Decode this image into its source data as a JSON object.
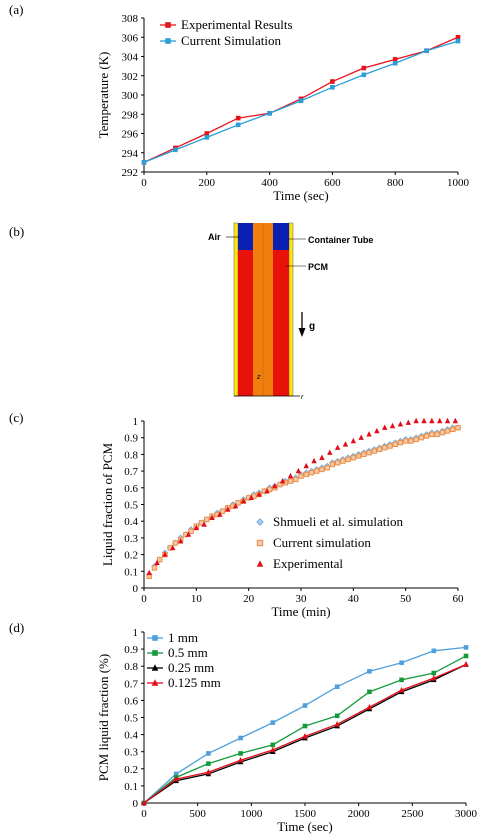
{
  "panel_labels": [
    "(a)",
    "(b)",
    "(c)",
    "(d)"
  ],
  "diagram": {
    "air_label": "Air",
    "container_label": "Container Tube",
    "pcm_label": "PCM",
    "gravity_label": "g",
    "z_label": "z",
    "r_label": "r",
    "colors": {
      "air": "#0a1fb3",
      "pcm": "#e8120b",
      "tube": "#f07f10",
      "wall": "#ffe600"
    }
  },
  "chart_data": [
    {
      "id": "a",
      "type": "line",
      "xlabel": "Time (sec)",
      "ylabel": "Temperature (K)",
      "xlim": [
        0,
        1000
      ],
      "ylim": [
        292,
        308
      ],
      "xticks": [
        0,
        200,
        400,
        600,
        800,
        1000
      ],
      "yticks": [
        292,
        294,
        296,
        298,
        300,
        302,
        304,
        306,
        308
      ],
      "legend": "top-left",
      "series": [
        {
          "name": "Experimental Results",
          "color": "#e8121b",
          "marker": "square",
          "x": [
            0,
            100,
            200,
            300,
            400,
            500,
            600,
            700,
            800,
            900,
            1000
          ],
          "y": [
            293.0,
            294.5,
            296.0,
            297.6,
            298.1,
            299.6,
            301.4,
            302.8,
            303.7,
            304.6,
            306.0
          ]
        },
        {
          "name": "Current Simulation",
          "color": "#2a9fd8",
          "marker": "square",
          "x": [
            0,
            100,
            200,
            300,
            400,
            500,
            600,
            700,
            800,
            900,
            1000
          ],
          "y": [
            293.0,
            294.3,
            295.6,
            296.9,
            298.1,
            299.4,
            300.8,
            302.1,
            303.3,
            304.6,
            305.6
          ]
        }
      ]
    },
    {
      "id": "c",
      "type": "scatter",
      "xlabel": "Time (min)",
      "ylabel": "Liquid fraction of PCM",
      "xlim": [
        0,
        60
      ],
      "ylim": [
        0,
        1
      ],
      "xticks": [
        0,
        10,
        20,
        30,
        40,
        50,
        60
      ],
      "yticks": [
        0,
        0.1,
        0.2,
        0.3,
        0.4,
        0.5,
        0.6,
        0.7,
        0.8,
        0.9,
        1
      ],
      "legend": "bottom-right",
      "series": [
        {
          "name": "Shmueli et al. simulation",
          "color": "#6aa5d8",
          "marker": "diamond",
          "x": [
            1,
            2,
            3,
            4,
            5,
            6,
            7,
            8,
            9,
            10,
            11,
            12,
            13,
            14,
            15,
            16,
            17,
            18,
            19,
            20,
            21,
            22,
            23,
            24,
            25,
            26,
            27,
            28,
            29,
            30,
            31,
            32,
            33,
            34,
            35,
            36,
            37,
            38,
            39,
            40,
            41,
            42,
            43,
            44,
            45,
            46,
            47,
            48,
            49,
            50,
            51,
            52,
            53,
            54,
            55,
            56,
            57,
            58,
            59,
            60
          ],
          "y": [
            0.08,
            0.13,
            0.17,
            0.21,
            0.24,
            0.27,
            0.3,
            0.32,
            0.35,
            0.37,
            0.39,
            0.41,
            0.43,
            0.45,
            0.46,
            0.48,
            0.5,
            0.51,
            0.53,
            0.54,
            0.56,
            0.57,
            0.58,
            0.6,
            0.61,
            0.62,
            0.64,
            0.65,
            0.66,
            0.68,
            0.69,
            0.7,
            0.71,
            0.72,
            0.73,
            0.75,
            0.76,
            0.77,
            0.78,
            0.79,
            0.8,
            0.81,
            0.82,
            0.83,
            0.84,
            0.85,
            0.86,
            0.87,
            0.88,
            0.89,
            0.89,
            0.9,
            0.91,
            0.92,
            0.93,
            0.93,
            0.94,
            0.95,
            0.96,
            0.96
          ]
        },
        {
          "name": "Current simulation",
          "color": "#e8904a",
          "marker": "square-open",
          "x": [
            1,
            2,
            3,
            4,
            5,
            6,
            7,
            8,
            9,
            10,
            11,
            12,
            13,
            14,
            15,
            16,
            17,
            18,
            19,
            20,
            21,
            22,
            23,
            24,
            25,
            26,
            27,
            28,
            29,
            30,
            31,
            32,
            33,
            34,
            35,
            36,
            37,
            38,
            39,
            40,
            41,
            42,
            43,
            44,
            45,
            46,
            47,
            48,
            49,
            50,
            51,
            52,
            53,
            54,
            55,
            56,
            57,
            58,
            59,
            60
          ],
          "y": [
            0.07,
            0.12,
            0.17,
            0.2,
            0.24,
            0.27,
            0.29,
            0.32,
            0.34,
            0.37,
            0.39,
            0.41,
            0.43,
            0.44,
            0.46,
            0.48,
            0.49,
            0.51,
            0.52,
            0.54,
            0.55,
            0.56,
            0.58,
            0.59,
            0.6,
            0.62,
            0.63,
            0.64,
            0.65,
            0.67,
            0.68,
            0.69,
            0.7,
            0.71,
            0.72,
            0.74,
            0.75,
            0.76,
            0.77,
            0.78,
            0.79,
            0.8,
            0.81,
            0.82,
            0.83,
            0.84,
            0.85,
            0.86,
            0.87,
            0.88,
            0.88,
            0.89,
            0.9,
            0.91,
            0.92,
            0.92,
            0.93,
            0.94,
            0.95,
            0.96
          ]
        },
        {
          "name": "Experimental",
          "color": "#e30d1a",
          "marker": "triangle",
          "x": [
            1,
            2.5,
            4,
            5.5,
            7,
            8.5,
            10,
            11.5,
            13,
            14.5,
            16,
            17.5,
            19,
            20.5,
            22,
            23.5,
            25,
            26.5,
            28,
            29.5,
            31,
            32.5,
            34,
            35.5,
            37,
            38.5,
            40,
            41.5,
            43,
            44.5,
            46,
            47.5,
            49,
            50.5,
            52,
            53.5,
            55,
            56.5,
            58,
            59.5
          ],
          "y": [
            0.09,
            0.15,
            0.2,
            0.24,
            0.28,
            0.32,
            0.36,
            0.38,
            0.42,
            0.44,
            0.47,
            0.49,
            0.52,
            0.54,
            0.56,
            0.58,
            0.61,
            0.64,
            0.67,
            0.7,
            0.73,
            0.76,
            0.78,
            0.81,
            0.84,
            0.86,
            0.88,
            0.9,
            0.92,
            0.94,
            0.96,
            0.97,
            0.98,
            0.99,
            1,
            1,
            1,
            1,
            1,
            1
          ]
        }
      ]
    },
    {
      "id": "d",
      "type": "line",
      "xlabel": "Time (sec)",
      "ylabel": "PCM liquid fraction (%)",
      "xlim": [
        0,
        3000
      ],
      "ylim": [
        0,
        1
      ],
      "xticks": [
        0,
        500,
        1000,
        1500,
        2000,
        2500,
        3000
      ],
      "yticks": [
        0,
        0.1,
        0.2,
        0.3,
        0.4,
        0.5,
        0.6,
        0.7,
        0.8,
        0.9,
        1
      ],
      "legend": "top-left",
      "series": [
        {
          "name": "1 mm",
          "color": "#4f9fdc",
          "marker": "square",
          "x": [
            0,
            300,
            600,
            900,
            1200,
            1500,
            1800,
            2100,
            2400,
            2700,
            3000
          ],
          "y": [
            0,
            0.17,
            0.29,
            0.38,
            0.47,
            0.57,
            0.68,
            0.77,
            0.82,
            0.89,
            0.91
          ]
        },
        {
          "name": "0.5 mm",
          "color": "#149a3c",
          "marker": "square",
          "x": [
            0,
            300,
            600,
            900,
            1200,
            1500,
            1800,
            2100,
            2400,
            2700,
            3000
          ],
          "y": [
            0,
            0.15,
            0.23,
            0.29,
            0.34,
            0.45,
            0.51,
            0.65,
            0.72,
            0.76,
            0.86
          ]
        },
        {
          "name": "0.25 mm",
          "color": "#000000",
          "marker": "triangle",
          "x": [
            0,
            300,
            600,
            900,
            1200,
            1500,
            1800,
            2100,
            2400,
            2700,
            3000
          ],
          "y": [
            0,
            0.13,
            0.17,
            0.24,
            0.3,
            0.38,
            0.45,
            0.55,
            0.65,
            0.72,
            0.81
          ]
        },
        {
          "name": "0.125 mm",
          "color": "#e30d1a",
          "marker": "triangle",
          "x": [
            0,
            300,
            600,
            900,
            1200,
            1500,
            1800,
            2100,
            2400,
            2700,
            3000
          ],
          "y": [
            0,
            0.14,
            0.18,
            0.25,
            0.31,
            0.39,
            0.46,
            0.56,
            0.66,
            0.73,
            0.81
          ]
        }
      ]
    }
  ]
}
